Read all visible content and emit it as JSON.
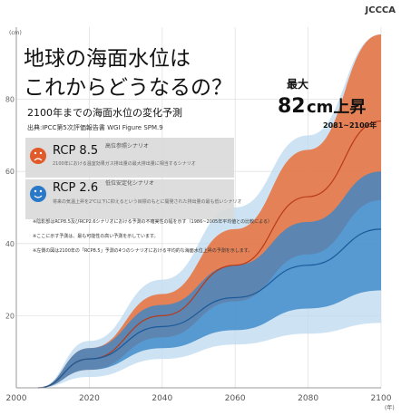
{
  "brand": "JCCCA",
  "title_line1": "地球の海面水位は",
  "title_line2": "これからどうなるの？",
  "subtitle": "2100年までの海面水位の変化予測",
  "source": "出典:IPCC第5次評価報告書 WGI Figure SPM.9",
  "max_label": "最大",
  "max_value": "82",
  "max_unit": "cm上昇",
  "max_period": "2081~2100年",
  "y_unit": "(cm)",
  "x_unit": "(年)",
  "legend": [
    {
      "id": "rcp85",
      "name": "RCP 8.5",
      "tag": "高位参照シナリオ",
      "desc": "2100年における温室効果ガス排出量の最大排出量に相当するシナリオ",
      "icon": "sad-face-icon",
      "color": "#e8703a",
      "icon_color": "#e05a2a"
    },
    {
      "id": "rcp26",
      "name": "RCP 2.6",
      "tag": "低位安定化シナリオ",
      "desc": "将来の気温上昇を2℃以下に抑えるという目標のもとに開発された排出量の最も低いシナリオ",
      "icon": "smile-face-icon",
      "color": "#3a86c8",
      "icon_color": "#2a78c8"
    }
  ],
  "notes": [
    "※陰影部はRCP8.5及びRCP2.6シナリオにおける予測の不確実性の幅を示す（1986~2005年平均値との比較による）",
    "※ここに示す予測は、最も可能性の高い予測を示しています。",
    "※左側の図は2100年の「RCP8.5」予測の4つのシナリオにおける平均的な海面水位上昇の予測を示します。"
  ],
  "chart_data": {
    "type": "area",
    "x": [
      2006,
      2020,
      2040,
      2060,
      2080,
      2100
    ],
    "xlim": [
      2000,
      2100
    ],
    "ylim": [
      0,
      100
    ],
    "x_ticks": [
      2000,
      2020,
      2040,
      2060,
      2080,
      2100
    ],
    "y_ticks": [
      20,
      40,
      60,
      80
    ],
    "series": [
      {
        "name": "RCP 8.5",
        "mean": [
          0,
          8,
          20,
          34,
          53,
          74
        ],
        "low": [
          0,
          5,
          14,
          24,
          37,
          52
        ],
        "high": [
          0,
          11,
          26,
          44,
          66,
          98
        ],
        "color": "#e8703a"
      },
      {
        "name": "RCP 2.6",
        "mean": [
          0,
          8,
          17,
          25,
          34,
          44
        ],
        "low": [
          0,
          5,
          11,
          16,
          22,
          27
        ],
        "high": [
          0,
          11,
          23,
          34,
          46,
          60
        ],
        "color": "#3a86c8"
      }
    ],
    "uncertainty_wide": {
      "low": [
        0,
        3,
        8,
        12,
        15,
        18
      ],
      "high": [
        0,
        13,
        30,
        50,
        70,
        98
      ],
      "color": "#bcd9ef"
    }
  }
}
